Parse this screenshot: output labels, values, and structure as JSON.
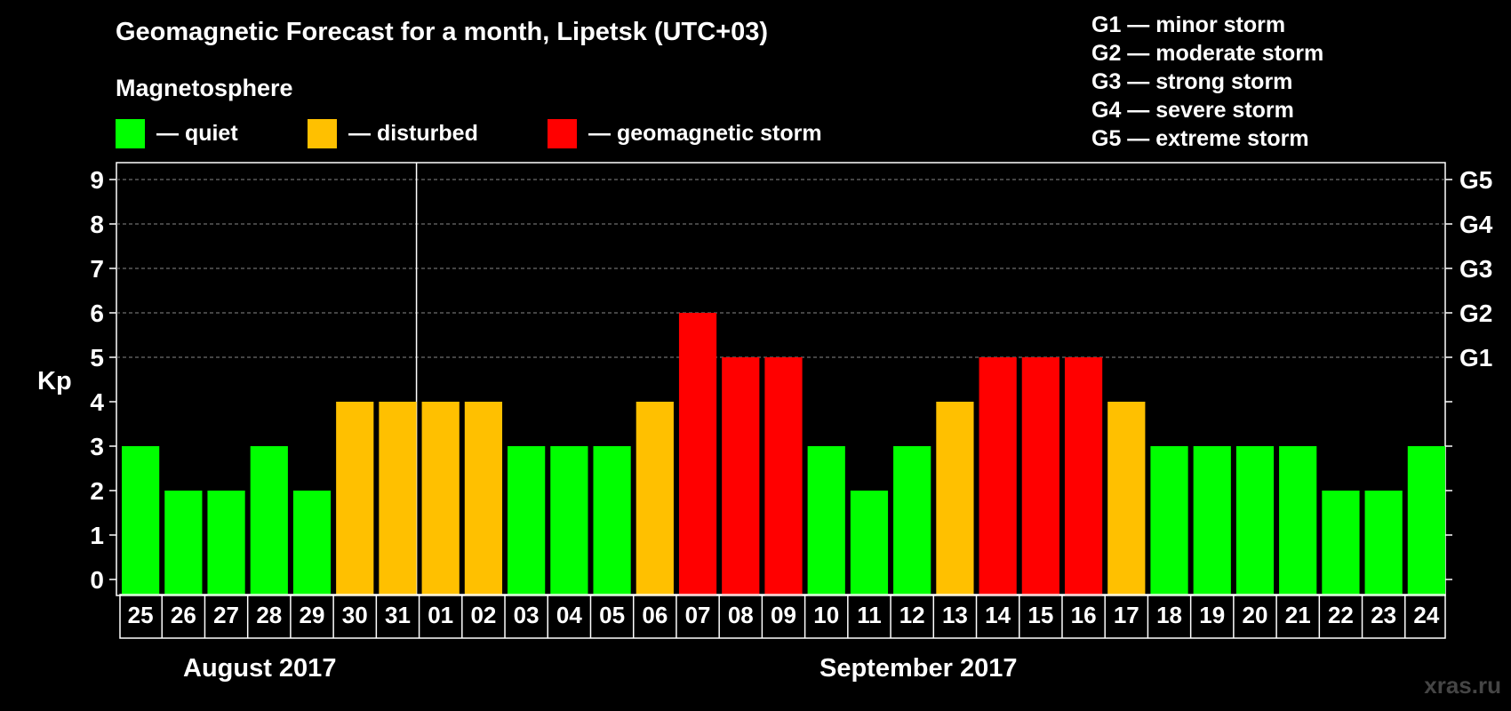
{
  "title": "Geomagnetic Forecast for a month, Lipetsk (UTC+03)",
  "legend": {
    "heading": "Magnetosphere",
    "items": [
      {
        "label": "— quiet",
        "color": "#00FF00"
      },
      {
        "label": "— disturbed",
        "color": "#FFC000"
      },
      {
        "label": "— geomagnetic storm",
        "color": "#FF0000"
      }
    ]
  },
  "storm_levels": [
    "G1 — minor storm",
    "G2 — moderate storm",
    "G3 — strong storm",
    "G4 — severe storm",
    "G5 — extreme storm"
  ],
  "months": [
    "August 2017",
    "September 2017"
  ],
  "watermark": "xras.ru",
  "chart_data": {
    "type": "bar",
    "ylabel": "Kp",
    "ylim": [
      0,
      9
    ],
    "yticks": [
      "0",
      "1",
      "2",
      "3",
      "4",
      "5",
      "6",
      "7",
      "8",
      "9"
    ],
    "right_ticks": [
      {
        "y": 5,
        "label": "G1"
      },
      {
        "y": 6,
        "label": "G2"
      },
      {
        "y": 7,
        "label": "G3"
      },
      {
        "y": 8,
        "label": "G4"
      },
      {
        "y": 9,
        "label": "G5"
      }
    ],
    "grid": "dashed at 5-9",
    "categories": [
      "25",
      "26",
      "27",
      "28",
      "29",
      "30",
      "31",
      "01",
      "02",
      "03",
      "04",
      "05",
      "06",
      "07",
      "08",
      "09",
      "10",
      "11",
      "12",
      "13",
      "14",
      "15",
      "16",
      "17",
      "18",
      "19",
      "20",
      "21",
      "22",
      "23",
      "24"
    ],
    "values": [
      3,
      2,
      2,
      3,
      2,
      4,
      4,
      4,
      4,
      3,
      3,
      3,
      4,
      6,
      5,
      5,
      3,
      2,
      3,
      4,
      5,
      5,
      5,
      4,
      3,
      3,
      3,
      3,
      2,
      2,
      3
    ],
    "colors": {
      "quiet": "#00FF00",
      "disturbed": "#FFC000",
      "storm": "#FF0000"
    }
  }
}
